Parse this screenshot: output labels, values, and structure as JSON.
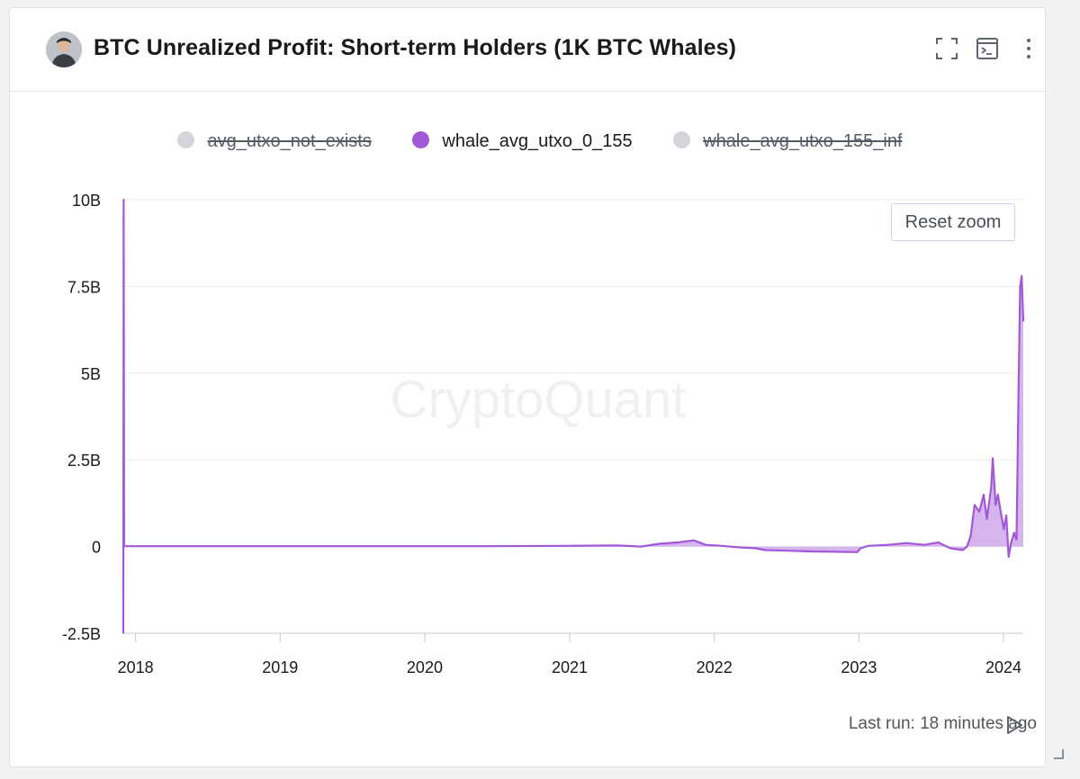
{
  "header": {
    "title": "BTC Unrealized Profit: Short-term Holders (1K BTC Whales)",
    "icons": [
      "fullscreen-icon",
      "terminal-icon",
      "more-vertical-icon"
    ]
  },
  "legend": [
    {
      "label": "avg_utxo_not_exists",
      "state": "hidden"
    },
    {
      "label": "whale_avg_utxo_0_155",
      "state": "active"
    },
    {
      "label": "whale_avg_utxo_155_inf",
      "state": "hidden"
    }
  ],
  "reset_zoom_label": "Reset zoom",
  "watermark": "CryptoQuant",
  "footer": {
    "last_run": "Last run: 18 minutes ago"
  },
  "colors": {
    "series": "#a259d9",
    "fill": "#c89be8",
    "grid": "#eeeeef",
    "axis": "#c5c8ce"
  },
  "chart_data": {
    "type": "area",
    "series": [
      {
        "name": "whale_avg_utxo_0_155",
        "points": [
          [
            "2017-12-01",
            -2500000000.0
          ],
          [
            "2017-12-02",
            10000000000.0
          ],
          [
            "2017-12-03",
            10000000.0
          ],
          [
            "2018-06-01",
            10000000.0
          ],
          [
            "2019-06-01",
            10000000.0
          ],
          [
            "2020-06-01",
            10000000.0
          ],
          [
            "2021-01-01",
            20000000.0
          ],
          [
            "2021-05-01",
            30000000.0
          ],
          [
            "2021-07-01",
            0.0
          ],
          [
            "2021-08-15",
            80000000.0
          ],
          [
            "2021-10-01",
            120000000.0
          ],
          [
            "2021-11-10",
            180000000.0
          ],
          [
            "2021-12-10",
            50000000.0
          ],
          [
            "2022-01-20",
            20000000.0
          ],
          [
            "2022-03-01",
            -20000000.0
          ],
          [
            "2022-04-15",
            -50000000.0
          ],
          [
            "2022-05-10",
            -100000000.0
          ],
          [
            "2022-07-01",
            -120000000.0
          ],
          [
            "2022-09-01",
            -140000000.0
          ],
          [
            "2022-11-01",
            -150000000.0
          ],
          [
            "2022-12-28",
            -160000000.0
          ],
          [
            "2023-01-05",
            -50000000.0
          ],
          [
            "2023-01-25",
            20000000.0
          ],
          [
            "2023-03-15",
            50000000.0
          ],
          [
            "2023-05-01",
            100000000.0
          ],
          [
            "2023-06-15",
            50000000.0
          ],
          [
            "2023-07-20",
            120000000.0
          ],
          [
            "2023-08-20",
            -50000000.0
          ],
          [
            "2023-09-20",
            -100000000.0
          ],
          [
            "2023-10-01",
            0.0
          ],
          [
            "2023-10-10",
            300000000.0
          ],
          [
            "2023-10-20",
            1200000000.0
          ],
          [
            "2023-11-01",
            1000000000.0
          ],
          [
            "2023-11-12",
            1500000000.0
          ],
          [
            "2023-11-20",
            800000000.0
          ],
          [
            "2023-12-01",
            1700000000.0
          ],
          [
            "2023-12-05",
            2550000000.0
          ],
          [
            "2023-12-12",
            1200000000.0
          ],
          [
            "2023-12-18",
            1500000000.0
          ],
          [
            "2023-12-25",
            1000000000.0
          ],
          [
            "2024-01-02",
            500000000.0
          ],
          [
            "2024-01-08",
            900000000.0
          ],
          [
            "2024-01-14",
            -300000000.0
          ],
          [
            "2024-01-20",
            100000000.0
          ],
          [
            "2024-01-28",
            400000000.0
          ],
          [
            "2024-02-03",
            200000000.0
          ],
          [
            "2024-02-08",
            4500000000.0
          ],
          [
            "2024-02-12",
            7500000000.0
          ],
          [
            "2024-02-16",
            7800000000.0
          ],
          [
            "2024-02-20",
            6500000000.0
          ]
        ]
      }
    ],
    "xlabel": "",
    "ylabel": "",
    "xticks": [
      "2018",
      "2019",
      "2020",
      "2021",
      "2022",
      "2023",
      "2024"
    ],
    "yticks": [
      "10B",
      "7.5B",
      "5B",
      "2.5B",
      "0",
      "-2.5B"
    ],
    "ylim": [
      -2500000000.0,
      10000000000.0
    ],
    "xlim": [
      "2017-12-01",
      "2024-02-20"
    ],
    "grid": "horizontal",
    "legend_position": "top-center"
  }
}
